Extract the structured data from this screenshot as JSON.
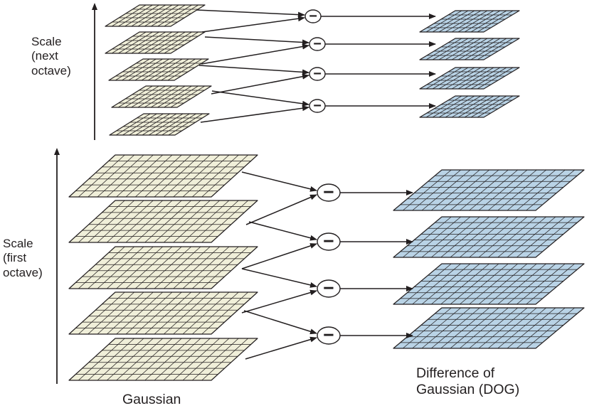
{
  "labels": {
    "next_octave": [
      "Scale",
      "(next",
      "octave)"
    ],
    "first_octave": [
      "Scale",
      "(first",
      "octave)"
    ],
    "gaussian": "Gaussian",
    "dog": [
      "Difference of",
      "Gaussian (DOG)"
    ]
  },
  "operator_symbol": "−",
  "structure": {
    "octaves": [
      {
        "gaussian_layers": 5,
        "dog_layers": 4
      },
      {
        "gaussian_layers": 5,
        "dog_layers": 4
      }
    ]
  },
  "colors": {
    "gaussian_fill": "#f0efd9",
    "dog_fill": "#b9d3e6",
    "line": "#231f20",
    "background": "#ffffff"
  }
}
